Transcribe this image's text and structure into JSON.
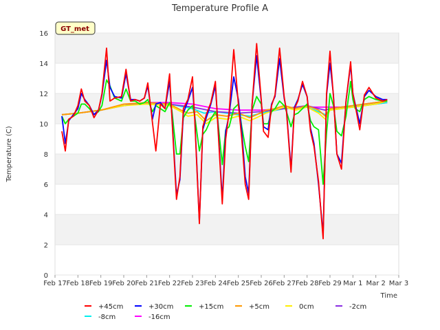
{
  "chart_data": {
    "type": "line",
    "title": "Temperature Profile A",
    "xlabel": "Time",
    "ylabel": "Temperature (C)",
    "badge": "GT_met",
    "ylim": [
      0,
      16
    ],
    "yticks": [
      0,
      2,
      4,
      6,
      8,
      10,
      12,
      14,
      16
    ],
    "xlim": [
      0,
      15
    ],
    "xticks": [
      {
        "pos": 0,
        "label": "Feb 17"
      },
      {
        "pos": 1,
        "label": "Feb 18"
      },
      {
        "pos": 2,
        "label": "Feb 19"
      },
      {
        "pos": 3,
        "label": "Feb 20"
      },
      {
        "pos": 4,
        "label": "Feb 21"
      },
      {
        "pos": 5,
        "label": "Feb 22"
      },
      {
        "pos": 6,
        "label": "Feb 23"
      },
      {
        "pos": 7,
        "label": "Feb 24"
      },
      {
        "pos": 8,
        "label": "Feb 25"
      },
      {
        "pos": 9,
        "label": "Feb 26"
      },
      {
        "pos": 10,
        "label": "Feb 27"
      },
      {
        "pos": 11,
        "label": "Feb 28"
      },
      {
        "pos": 12,
        "label": "Feb 29"
      },
      {
        "pos": 13,
        "label": "Mar 1"
      },
      {
        "pos": 14,
        "label": "Mar 2"
      },
      {
        "pos": 15,
        "label": "Mar 3"
      }
    ],
    "bands": [
      [
        2,
        4
      ],
      [
        6,
        8
      ],
      [
        10,
        12
      ],
      [
        14,
        16
      ]
    ],
    "series": [
      {
        "name": "+45cm",
        "color": "#ff0000",
        "x": [
          0.3,
          0.45,
          0.6,
          0.8,
          1.0,
          1.15,
          1.3,
          1.5,
          1.7,
          1.9,
          2.05,
          2.25,
          2.4,
          2.6,
          2.9,
          3.1,
          3.3,
          3.5,
          3.7,
          3.9,
          4.05,
          4.25,
          4.4,
          4.6,
          4.8,
          5.0,
          5.1,
          5.3,
          5.45,
          5.6,
          5.8,
          6.0,
          6.1,
          6.3,
          6.45,
          6.6,
          6.8,
          7.0,
          7.1,
          7.3,
          7.45,
          7.6,
          7.8,
          8.0,
          8.15,
          8.3,
          8.45,
          8.6,
          8.8,
          9.0,
          9.1,
          9.3,
          9.45,
          9.6,
          9.8,
          10.0,
          10.1,
          10.3,
          10.45,
          10.6,
          10.8,
          11.0,
          11.15,
          11.3,
          11.5,
          11.7,
          11.85,
          12.0,
          12.15,
          12.3,
          12.5,
          12.7,
          12.9,
          13.0,
          13.1,
          13.3,
          13.5,
          13.7,
          14.0,
          14.3,
          14.5
        ],
        "y": [
          9.5,
          8.2,
          10.3,
          10.5,
          11.2,
          12.3,
          11.5,
          11.2,
          10.4,
          10.9,
          12.0,
          15.0,
          11.5,
          11.7,
          11.8,
          13.6,
          11.5,
          11.6,
          11.5,
          11.7,
          12.7,
          10.1,
          8.2,
          11.3,
          11.0,
          13.3,
          10.4,
          5.0,
          6.5,
          11.0,
          11.6,
          13.1,
          10.2,
          3.4,
          9.8,
          10.6,
          11.4,
          12.8,
          10.0,
          4.7,
          9.0,
          10.8,
          14.9,
          11.3,
          9.0,
          6.0,
          5.0,
          11.3,
          15.3,
          11.6,
          9.5,
          9.1,
          11.2,
          11.9,
          15.0,
          11.8,
          10.8,
          6.8,
          11.0,
          11.5,
          12.8,
          11.8,
          9.5,
          8.5,
          6.2,
          2.4,
          12.0,
          14.8,
          11.8,
          8.0,
          7.0,
          11.5,
          14.1,
          12.0,
          11.2,
          9.6,
          11.9,
          12.4,
          11.7,
          11.5,
          11.6
        ]
      },
      {
        "name": "+30cm",
        "color": "#0000ff",
        "x": [
          0.3,
          0.45,
          0.6,
          0.8,
          1.0,
          1.15,
          1.3,
          1.5,
          1.7,
          1.9,
          2.05,
          2.25,
          2.4,
          2.6,
          2.9,
          3.1,
          3.3,
          3.5,
          3.7,
          3.9,
          4.05,
          4.25,
          4.4,
          4.6,
          4.8,
          5.0,
          5.1,
          5.3,
          5.45,
          5.6,
          5.8,
          6.0,
          6.1,
          6.3,
          6.45,
          6.6,
          6.8,
          7.0,
          7.1,
          7.3,
          7.45,
          7.6,
          7.8,
          8.0,
          8.15,
          8.3,
          8.45,
          8.6,
          8.8,
          9.0,
          9.1,
          9.3,
          9.45,
          9.6,
          9.8,
          10.0,
          10.1,
          10.3,
          10.45,
          10.6,
          10.8,
          11.0,
          11.15,
          11.3,
          11.5,
          11.7,
          11.85,
          12.0,
          12.15,
          12.3,
          12.5,
          12.7,
          12.9,
          13.0,
          13.1,
          13.3,
          13.5,
          13.7,
          14.0,
          14.3,
          14.5
        ],
        "y": [
          10.5,
          8.7,
          10.2,
          10.6,
          11.0,
          12.0,
          11.6,
          11.2,
          10.6,
          10.9,
          11.9,
          14.2,
          12.4,
          11.8,
          11.7,
          13.3,
          11.6,
          11.6,
          11.5,
          11.7,
          12.5,
          10.3,
          11.3,
          11.4,
          11.0,
          12.8,
          10.6,
          5.3,
          6.3,
          10.7,
          11.5,
          12.4,
          10.4,
          3.5,
          9.6,
          10.4,
          11.3,
          12.5,
          10.2,
          5.0,
          9.5,
          10.6,
          13.1,
          11.6,
          9.5,
          6.5,
          5.4,
          11.3,
          14.5,
          11.5,
          9.8,
          9.6,
          11.3,
          11.8,
          14.3,
          11.7,
          10.9,
          7.0,
          11.1,
          11.6,
          12.6,
          11.8,
          9.7,
          8.7,
          6.0,
          2.7,
          11.9,
          14.0,
          11.9,
          8.0,
          7.4,
          11.5,
          13.9,
          12.0,
          11.3,
          10.0,
          11.8,
          12.2,
          11.8,
          11.6,
          11.6
        ]
      },
      {
        "name": "+15cm",
        "color": "#00ee00",
        "x": [
          0.3,
          0.45,
          0.6,
          0.8,
          1.0,
          1.15,
          1.3,
          1.5,
          1.7,
          1.9,
          2.05,
          2.25,
          2.4,
          2.6,
          2.9,
          3.1,
          3.3,
          3.5,
          3.7,
          3.9,
          4.05,
          4.25,
          4.4,
          4.6,
          4.8,
          5.0,
          5.1,
          5.3,
          5.45,
          5.6,
          5.8,
          6.0,
          6.1,
          6.3,
          6.45,
          6.6,
          6.8,
          7.0,
          7.1,
          7.3,
          7.45,
          7.6,
          7.8,
          8.0,
          8.15,
          8.3,
          8.45,
          8.6,
          8.8,
          9.0,
          9.1,
          9.3,
          9.45,
          9.6,
          9.8,
          10.0,
          10.1,
          10.3,
          10.45,
          10.6,
          10.8,
          11.0,
          11.15,
          11.3,
          11.5,
          11.7,
          11.85,
          12.0,
          12.15,
          12.3,
          12.5,
          12.7,
          12.9,
          13.0,
          13.1,
          13.3,
          13.5,
          13.7,
          14.0,
          14.3,
          14.5
        ],
        "y": [
          10.5,
          10.0,
          10.3,
          10.5,
          10.7,
          11.3,
          11.3,
          11.0,
          10.6,
          10.8,
          11.2,
          12.9,
          12.5,
          11.7,
          11.5,
          12.3,
          11.5,
          11.5,
          11.3,
          11.4,
          11.6,
          10.8,
          11.2,
          11.0,
          10.8,
          11.4,
          10.9,
          8.0,
          8.0,
          10.4,
          10.9,
          11.2,
          10.5,
          8.2,
          9.3,
          9.6,
          10.3,
          10.8,
          10.3,
          7.3,
          9.6,
          9.8,
          11.0,
          11.3,
          9.8,
          8.5,
          7.5,
          10.9,
          11.8,
          11.3,
          10.0,
          10.0,
          10.8,
          11.0,
          11.5,
          11.2,
          10.8,
          9.8,
          10.6,
          10.7,
          11.0,
          11.3,
          10.2,
          9.8,
          9.6,
          6.0,
          9.4,
          12.0,
          11.2,
          9.5,
          9.2,
          10.5,
          12.8,
          11.6,
          11.0,
          10.8,
          11.6,
          11.8,
          11.6,
          11.5,
          11.5
        ]
      },
      {
        "name": "+5cm",
        "color": "#ff9900",
        "x": [
          0.3,
          1.0,
          2.0,
          3.0,
          4.0,
          5.0,
          5.5,
          5.8,
          6.2,
          6.6,
          7.0,
          7.5,
          8.0,
          8.5,
          8.8,
          9.2,
          9.6,
          10.0,
          10.5,
          11.0,
          11.5,
          11.8,
          12.0,
          12.5,
          13.0,
          13.5,
          14.0,
          14.5
        ],
        "y": [
          10.6,
          10.7,
          10.9,
          11.3,
          11.4,
          11.3,
          10.9,
          10.7,
          10.8,
          10.2,
          10.6,
          10.5,
          10.7,
          10.4,
          10.6,
          10.9,
          11.0,
          11.2,
          11.0,
          11.2,
          10.9,
          10.5,
          11.0,
          11.1,
          11.2,
          11.3,
          11.4,
          11.5
        ]
      },
      {
        "name": "0cm",
        "color": "#ffee00",
        "x": [
          0.3,
          1.0,
          2.0,
          3.0,
          4.0,
          5.0,
          5.5,
          5.8,
          6.2,
          6.6,
          7.0,
          7.5,
          8.0,
          8.5,
          8.8,
          9.2,
          9.6,
          10.0,
          10.5,
          11.0,
          11.5,
          11.8,
          12.0,
          12.5,
          13.0,
          13.5,
          14.0,
          14.5
        ],
        "y": [
          10.6,
          10.7,
          10.9,
          11.2,
          11.3,
          11.2,
          10.8,
          10.5,
          10.6,
          10.0,
          10.4,
          10.3,
          10.5,
          10.2,
          10.4,
          10.7,
          10.9,
          11.1,
          10.9,
          11.1,
          10.7,
          10.3,
          10.9,
          11.0,
          11.1,
          11.2,
          11.3,
          11.5
        ]
      },
      {
        "name": "-2cm",
        "color": "#8a2be2",
        "x": [
          0.3,
          1.0,
          2.0,
          3.0,
          4.0,
          5.0,
          6.0,
          7.0,
          8.0,
          9.0,
          10.0,
          11.0,
          11.5,
          11.8,
          12.0,
          13.0,
          14.0,
          14.5
        ],
        "y": [
          10.6,
          10.7,
          10.9,
          11.2,
          11.4,
          11.3,
          11.1,
          10.8,
          10.7,
          10.8,
          11.0,
          11.2,
          11.0,
          10.9,
          11.0,
          11.2,
          11.4,
          11.5
        ]
      },
      {
        "name": "-8cm",
        "color": "#00eeee",
        "x": [
          0.3,
          1.0,
          2.0,
          3.0,
          4.0,
          5.0,
          6.0,
          6.5,
          7.0,
          8.0,
          8.5,
          9.0,
          10.0,
          11.0,
          11.5,
          11.8,
          12.0,
          13.0,
          14.0,
          14.5
        ],
        "y": [
          10.6,
          10.7,
          10.9,
          11.2,
          11.4,
          11.3,
          11.0,
          10.7,
          10.8,
          10.6,
          10.5,
          10.7,
          11.0,
          11.1,
          10.8,
          10.6,
          10.9,
          11.1,
          11.3,
          11.4
        ]
      },
      {
        "name": "-16cm",
        "color": "#ff00ff",
        "x": [
          0.3,
          1.0,
          2.0,
          3.0,
          4.0,
          5.0,
          6.0,
          7.0,
          8.0,
          9.0,
          10.0,
          11.0,
          12.0,
          13.0,
          14.0,
          14.5
        ],
        "y": [
          10.6,
          10.7,
          10.9,
          11.2,
          11.4,
          11.4,
          11.3,
          11.0,
          10.9,
          10.9,
          11.0,
          11.1,
          11.1,
          11.1,
          11.3,
          11.4
        ]
      }
    ]
  }
}
